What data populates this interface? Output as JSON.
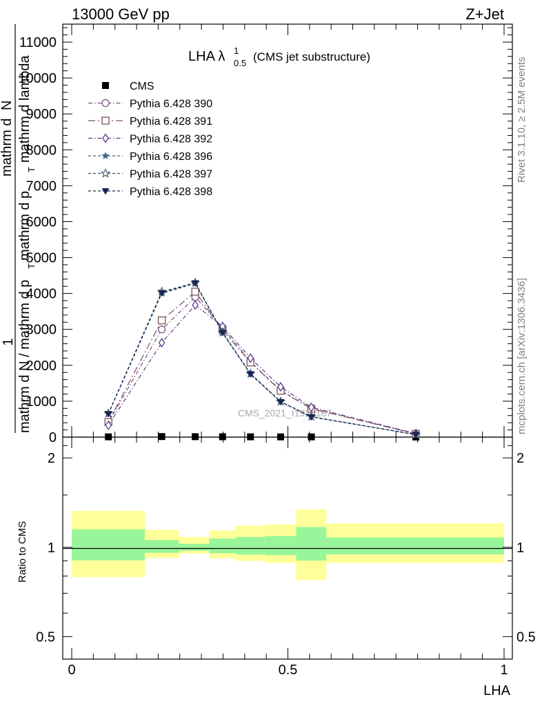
{
  "header": {
    "left": "13000 GeV pp",
    "right": "Z+Jet"
  },
  "side_texts": {
    "rivet": "Rivet 3.1.10, ≥ 2.5M events",
    "mcplots": "mcplots.cern.ch [arXiv:1306.3436]"
  },
  "watermark": "CMS_2021_I1920187",
  "colors": {
    "data": "#000000",
    "band_inner": "#99f599",
    "band_outer": "#ffff99"
  },
  "chart_data": [
    {
      "type": "line",
      "title_main": "LHA λ",
      "title_sup": "1",
      "title_sub": "0.5",
      "title_note": "(CMS jet substructure)",
      "ylabel_parts": {
        "one": "1",
        "denominator": "mathrm d N / mathrm d p",
        "sub_T": "T",
        "numerator": "mathrm d",
        "numerator_N": "N",
        "middle": "mathrm d p",
        "lambda": "mathrm d lambda"
      },
      "x": [
        0.0848,
        0.2083,
        0.2857,
        0.3489,
        0.4135,
        0.4832,
        0.5543,
        0.796
      ],
      "ylim": [
        0,
        11500
      ],
      "xlim": [
        0,
        1
      ],
      "yticks": [
        0,
        1000,
        2000,
        3000,
        4000,
        5000,
        6000,
        7000,
        8000,
        9000,
        10000,
        11000
      ],
      "ytick_labels": [
        "0",
        "1000",
        "2000",
        "3000",
        "4000",
        "5000",
        "6000",
        "7000",
        "8000",
        "9000",
        "10000",
        "11000"
      ],
      "legend_position": "top-left",
      "series": [
        {
          "name": "CMS",
          "color": "#000000",
          "marker": "square-filled",
          "dash": "none",
          "values": [
            7,
            15,
            12,
            10,
            8,
            6,
            6,
            3
          ]
        },
        {
          "name": "Pythia 6.428 390",
          "color": "#7a4f80",
          "marker": "circle-open",
          "dash": "dashdot",
          "values": [
            400,
            3000,
            3900,
            3050,
            2100,
            1300,
            800,
            95
          ]
        },
        {
          "name": "Pythia 6.428 391",
          "color": "#7a5050",
          "marker": "square-open",
          "dash": "dashdotlong",
          "values": [
            420,
            3250,
            4050,
            2980,
            2080,
            1290,
            790,
            90
          ]
        },
        {
          "name": "Pythia 6.428 392",
          "color": "#5a3a8a",
          "marker": "diamond-open",
          "dash": "dashdot",
          "values": [
            330,
            2630,
            3680,
            3080,
            2200,
            1400,
            830,
            100
          ]
        },
        {
          "name": "Pythia 6.428 396",
          "color": "#3a6a80",
          "marker": "star-filled",
          "dash": "dashed",
          "values": [
            650,
            4000,
            4280,
            2900,
            1750,
            980,
            560,
            70
          ]
        },
        {
          "name": "Pythia 6.428 397",
          "color": "#2e4f6e",
          "marker": "star-open",
          "dash": "dashed",
          "values": [
            660,
            4050,
            4300,
            2920,
            1770,
            990,
            570,
            70
          ]
        },
        {
          "name": "Pythia 6.428 398",
          "color": "#1c2550",
          "marker": "triangle-down-filled",
          "dash": "dashed",
          "values": [
            650,
            4020,
            4290,
            2910,
            1760,
            985,
            565,
            70
          ]
        }
      ]
    },
    {
      "type": "area",
      "ylabel": "Ratio to CMS",
      "xlabel": "LHA",
      "ylim": [
        0.42,
        2.35
      ],
      "yticks": [
        0.5,
        1,
        2
      ],
      "ytick_labels": [
        "0.5",
        "1",
        "2"
      ],
      "xticks": [
        0,
        0.5,
        1
      ],
      "xtick_labels": [
        "0",
        "0.5",
        "1"
      ],
      "bins": [
        {
          "lo": 0.0,
          "hi": 0.169,
          "inner": [
            0.903,
            1.15
          ],
          "outer": [
            0.793,
            1.326
          ]
        },
        {
          "lo": 0.169,
          "hi": 0.248,
          "inner": [
            0.958,
            1.057
          ],
          "outer": [
            0.92,
            1.145
          ]
        },
        {
          "lo": 0.248,
          "hi": 0.318,
          "inner": [
            0.973,
            1.027
          ],
          "outer": [
            0.952,
            1.083
          ]
        },
        {
          "lo": 0.318,
          "hi": 0.38,
          "inner": [
            0.955,
            1.07
          ],
          "outer": [
            0.917,
            1.14
          ]
        },
        {
          "lo": 0.38,
          "hi": 0.447,
          "inner": [
            0.945,
            1.083
          ],
          "outer": [
            0.9,
            1.183
          ]
        },
        {
          "lo": 0.447,
          "hi": 0.519,
          "inner": [
            0.94,
            1.091
          ],
          "outer": [
            0.886,
            1.193
          ]
        },
        {
          "lo": 0.519,
          "hi": 0.589,
          "inner": [
            0.902,
            1.17
          ],
          "outer": [
            0.776,
            1.342
          ]
        },
        {
          "lo": 0.589,
          "hi": 1.0,
          "inner": [
            0.946,
            1.079
          ],
          "outer": [
            0.886,
            1.204
          ]
        }
      ]
    }
  ]
}
